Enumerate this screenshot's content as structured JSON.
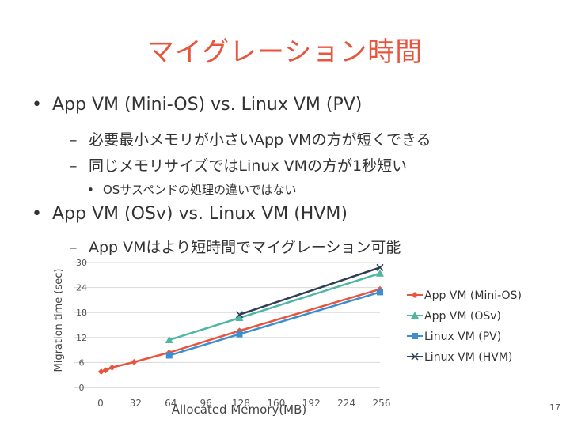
{
  "slide": {
    "title": "マイグレーション時間",
    "bullets": [
      {
        "text": "App VM (Mini-OS) vs. Linux VM (PV)"
      },
      {
        "text": "必要最小メモリが小さいApp VMの方が短くできる"
      },
      {
        "text": "同じメモリサイズではLinux VMの方が1秒短い"
      },
      {
        "text": "OSサスペンドの処理の違いではない"
      },
      {
        "text": "App VM (OSv) vs. Linux VM (HVM)"
      },
      {
        "text": "App VMはより短時間でマイグレーション可能"
      }
    ],
    "page_number": "17"
  },
  "chart_data": {
    "type": "line",
    "title": "",
    "xlabel": "Allocated Memory(MB)",
    "ylabel": "Migration time (sec)",
    "x_ticks": [
      "0",
      "32",
      "64",
      "96",
      "128",
      "160",
      "192",
      "224",
      "256"
    ],
    "y_ticks": [
      "0",
      "6",
      "12",
      "18",
      "24",
      "30"
    ],
    "xlim": [
      0,
      256
    ],
    "ylim": [
      0,
      30
    ],
    "grid": "horizontal",
    "legend_position": "right",
    "series": [
      {
        "name": "App VM (Mini-OS)",
        "color": "#e8553e",
        "marker": "diamond",
        "points": [
          [
            2,
            3.8
          ],
          [
            6,
            4.1
          ],
          [
            12,
            4.8
          ],
          [
            32,
            6.1
          ],
          [
            64,
            8.4
          ],
          [
            128,
            13.6
          ],
          [
            256,
            23.6
          ]
        ]
      },
      {
        "name": "App VM (OSv)",
        "color": "#4fb6a2",
        "marker": "triangle",
        "points": [
          [
            64,
            11.4
          ],
          [
            128,
            16.7
          ],
          [
            256,
            27.4
          ]
        ]
      },
      {
        "name": "Linux VM (PV)",
        "color": "#3a8fd1",
        "marker": "square",
        "points": [
          [
            64,
            7.7
          ],
          [
            128,
            12.8
          ],
          [
            256,
            22.9
          ]
        ]
      },
      {
        "name": "Linux VM (HVM)",
        "color": "#2e3e57",
        "marker": "x",
        "points": [
          [
            128,
            17.5
          ],
          [
            256,
            28.8
          ]
        ]
      }
    ]
  }
}
